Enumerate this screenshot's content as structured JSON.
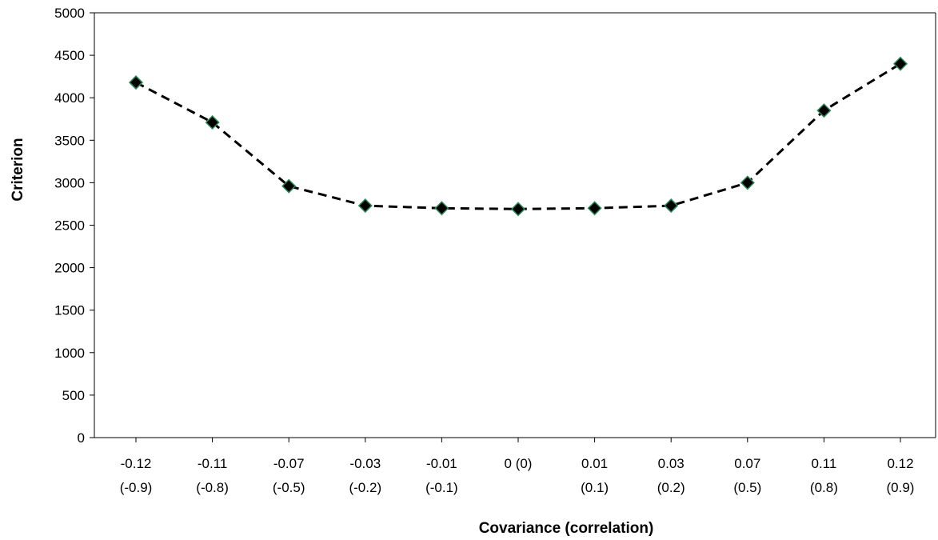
{
  "chart_data": {
    "type": "line",
    "xlabel": "Covariance (correlation)",
    "ylabel": "Criterion",
    "ylim": [
      0,
      5000
    ],
    "yticks": [
      "0",
      "500",
      "1000",
      "1500",
      "2000",
      "2500",
      "3000",
      "3500",
      "4000",
      "4500",
      "5000"
    ],
    "grid": false,
    "legend": "none",
    "categories": [
      [
        "-0.12",
        "(-0.9)"
      ],
      [
        "-0.11",
        "(-0.8)"
      ],
      [
        "-0.07",
        "(-0.5)"
      ],
      [
        "-0.03",
        "(-0.2)"
      ],
      [
        "-0.01",
        "(-0.1)"
      ],
      [
        "0 (0)",
        ""
      ],
      [
        "0.01",
        "(0.1)"
      ],
      [
        "0.03",
        "(0.2)"
      ],
      [
        "0.07",
        "(0.5)"
      ],
      [
        "0.11",
        "(0.8)"
      ],
      [
        "0.12",
        "(0.9)"
      ]
    ],
    "series": [
      {
        "values": [
          4180,
          3710,
          2960,
          2730,
          2700,
          2690,
          2700,
          2730,
          3000,
          3850,
          4400
        ],
        "line_style": "dashed",
        "line_color": "#000000",
        "marker": "diamond",
        "marker_fill": "#000000",
        "marker_edge": "#2e8b57"
      }
    ]
  }
}
